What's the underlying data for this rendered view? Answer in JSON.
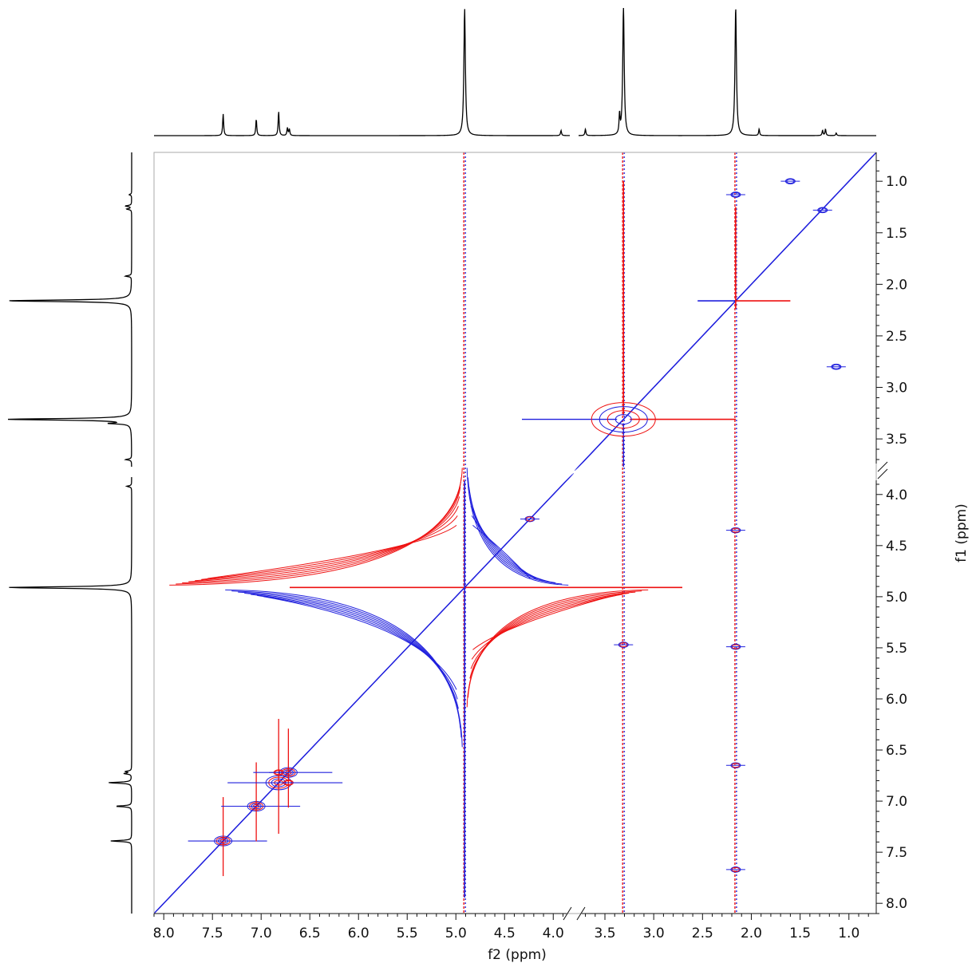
{
  "chart_data": {
    "type": "scatter",
    "subtype": "2D NMR contour plot (phase-sensitive, positive/negative levels) with 1D projection spectra",
    "xlabel": "f2 (ppm)",
    "ylabel": "f1 (ppm)",
    "axes": {
      "x": {
        "reversed": true,
        "segments": [
          {
            "from": 8.1,
            "to": 3.83
          },
          {
            "from": 3.77,
            "to": 0.72
          }
        ],
        "ticks": [
          "8.0",
          "7.5",
          "7.0",
          "6.5",
          "6.0",
          "5.5",
          "5.0",
          "4.5",
          "4.0",
          "3.5",
          "3.0",
          "2.5",
          "2.0",
          "1.5",
          "1.0"
        ],
        "axis_break": true
      },
      "y": {
        "reversed": true,
        "segments": [
          {
            "from": 0.72,
            "to": 3.77
          },
          {
            "from": 3.83,
            "to": 8.1
          }
        ],
        "ticks": [
          "1.0",
          "1.5",
          "2.0",
          "2.5",
          "3.0",
          "3.5",
          "4.0",
          "4.5",
          "5.0",
          "5.5",
          "6.0",
          "6.5",
          "7.0",
          "7.5",
          "8.0"
        ],
        "axis_break": true
      }
    },
    "grid": false,
    "legend": "none",
    "colors": {
      "positive": "#2020dd",
      "negative": "#ee1111",
      "spectrum": "#000000",
      "frame": "#aaaaaa"
    },
    "diagonal": {
      "from": [
        8.1,
        8.1
      ],
      "to": [
        0.72,
        0.72
      ]
    },
    "solvent_lines_f2": [
      4.91,
      3.31,
      2.16
    ],
    "projection_peaks": [
      {
        "ppm": 7.39,
        "intensity": 0.17
      },
      {
        "ppm": 7.05,
        "intensity": 0.13
      },
      {
        "ppm": 6.82,
        "intensity": 0.19
      },
      {
        "ppm": 6.73,
        "intensity": 0.06
      },
      {
        "ppm": 6.71,
        "intensity": 0.05
      },
      {
        "ppm": 4.91,
        "intensity": 1.0
      },
      {
        "ppm": 3.92,
        "intensity": 0.04
      },
      {
        "ppm": 3.7,
        "intensity": 0.05
      },
      {
        "ppm": 3.35,
        "intensity": 0.15
      },
      {
        "ppm": 3.31,
        "intensity": 1.0
      },
      {
        "ppm": 2.16,
        "intensity": 1.0
      },
      {
        "ppm": 1.92,
        "intensity": 0.05
      },
      {
        "ppm": 1.27,
        "intensity": 0.04
      },
      {
        "ppm": 1.24,
        "intensity": 0.05
      },
      {
        "ppm": 1.13,
        "intensity": 0.02
      }
    ],
    "cross_peaks": [
      {
        "f2": 7.39,
        "f1": 7.39,
        "sign": "both",
        "size": "medium"
      },
      {
        "f2": 7.05,
        "f1": 7.05,
        "sign": "both",
        "size": "medium"
      },
      {
        "f2": 6.82,
        "f1": 6.82,
        "sign": "both",
        "size": "large"
      },
      {
        "f2": 6.72,
        "f1": 6.72,
        "sign": "both",
        "size": "medium"
      },
      {
        "f2": 6.82,
        "f1": 6.72,
        "sign": "negative",
        "size": "small"
      },
      {
        "f2": 6.72,
        "f1": 6.82,
        "sign": "negative",
        "size": "small"
      },
      {
        "f2": 2.16,
        "f1": 4.35,
        "sign": "both",
        "size": "small"
      },
      {
        "f2": 2.16,
        "f1": 5.49,
        "sign": "both",
        "size": "small"
      },
      {
        "f2": 2.16,
        "f1": 6.65,
        "sign": "both",
        "size": "small"
      },
      {
        "f2": 2.16,
        "f1": 7.67,
        "sign": "both",
        "size": "small"
      },
      {
        "f2": 2.16,
        "f1": 1.13,
        "sign": "positive",
        "size": "small"
      },
      {
        "f2": 3.31,
        "f1": 5.47,
        "sign": "both",
        "size": "small"
      },
      {
        "f2": 4.24,
        "f1": 4.24,
        "sign": "both",
        "size": "small"
      },
      {
        "f2": 1.13,
        "f1": 2.8,
        "sign": "positive",
        "size": "small"
      },
      {
        "f2": 1.27,
        "f1": 1.28,
        "sign": "positive",
        "size": "small"
      },
      {
        "f2": 1.6,
        "f1": 1.0,
        "sign": "positive",
        "size": "small"
      }
    ]
  }
}
